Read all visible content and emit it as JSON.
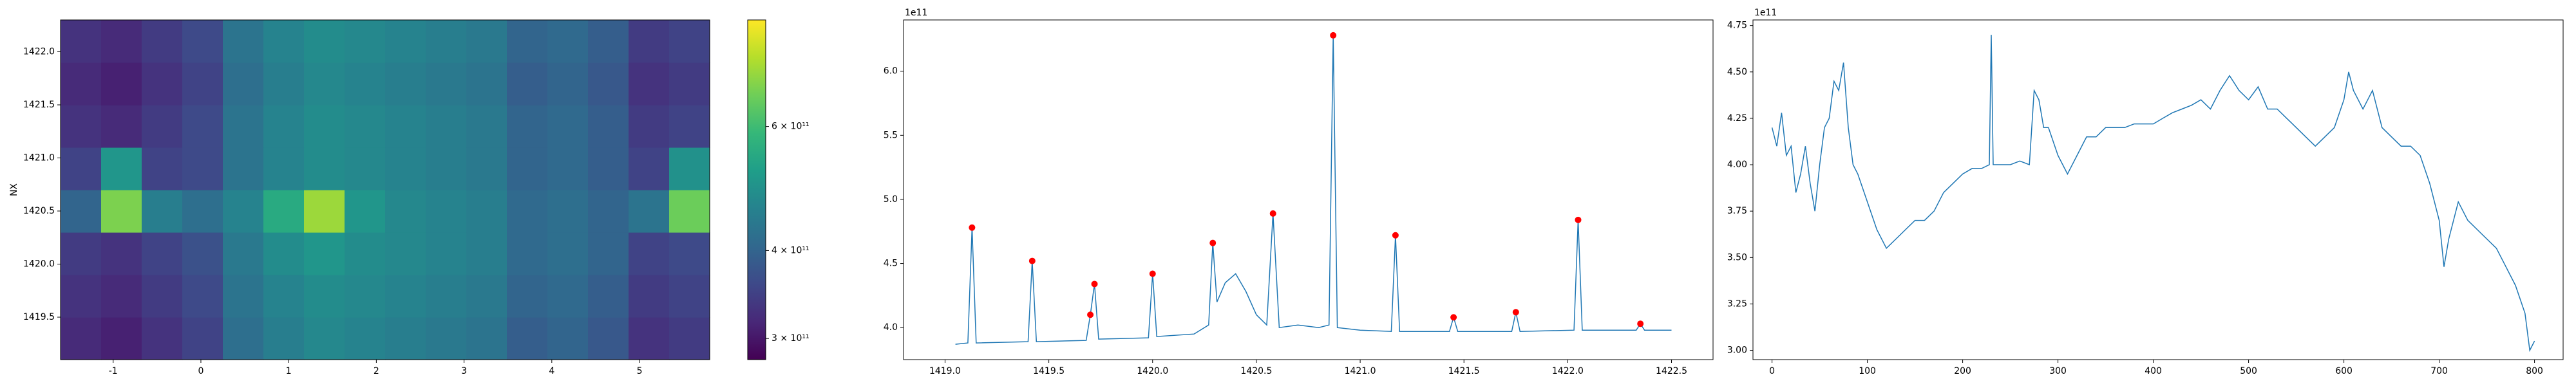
{
  "chart_data": [
    {
      "type": "heatmap",
      "ylabel": "NX",
      "xlim": [
        -1.6,
        5.8
      ],
      "xticks": [
        -1,
        0,
        1,
        2,
        3,
        4,
        5
      ],
      "ylim": [
        1419.1,
        1422.3
      ],
      "yticks": [
        1419.5,
        {
          "value": 1420.0,
          "label": "1420.0"
        },
        1420.5,
        {
          "value": 1421.0,
          "label": "1421.0"
        },
        1421.5,
        {
          "value": 1422.0,
          "label": "1422.0"
        }
      ],
      "z": [
        [
          320000000000.0,
          310000000000.0,
          330000000000.0,
          350000000000.0,
          420000000000.0,
          450000000000.0,
          470000000000.0,
          460000000000.0,
          450000000000.0,
          440000000000.0,
          430000000000.0,
          390000000000.0,
          400000000000.0,
          380000000000.0,
          330000000000.0,
          340000000000.0
        ],
        [
          330000000000.0,
          320000000000.0,
          340000000000.0,
          360000000000.0,
          430000000000.0,
          460000000000.0,
          480000000000.0,
          470000000000.0,
          460000000000.0,
          450000000000.0,
          440000000000.0,
          400000000000.0,
          410000000000.0,
          390000000000.0,
          340000000000.0,
          350000000000.0
        ],
        [
          340000000000.0,
          330000000000.0,
          350000000000.0,
          370000000000.0,
          440000000000.0,
          480000000000.0,
          500000000000.0,
          480000000000.0,
          470000000000.0,
          460000000000.0,
          450000000000.0,
          410000000000.0,
          420000000000.0,
          400000000000.0,
          350000000000.0,
          360000000000.0
        ],
        [
          400000000000.0,
          680000000000.0,
          450000000000.0,
          420000000000.0,
          460000000000.0,
          550000000000.0,
          720000000000.0,
          500000000000.0,
          470000000000.0,
          460000000000.0,
          450000000000.0,
          410000000000.0,
          420000000000.0,
          400000000000.0,
          430000000000.0,
          660000000000.0
        ],
        [
          350000000000.0,
          500000000000.0,
          350000000000.0,
          360000000000.0,
          430000000000.0,
          460000000000.0,
          480000000000.0,
          470000000000.0,
          460000000000.0,
          450000000000.0,
          440000000000.0,
          400000000000.0,
          410000000000.0,
          390000000000.0,
          350000000000.0,
          490000000000.0
        ],
        [
          330000000000.0,
          320000000000.0,
          340000000000.0,
          360000000000.0,
          430000000000.0,
          460000000000.0,
          480000000000.0,
          470000000000.0,
          460000000000.0,
          450000000000.0,
          440000000000.0,
          400000000000.0,
          410000000000.0,
          390000000000.0,
          340000000000.0,
          350000000000.0
        ],
        [
          320000000000.0,
          310000000000.0,
          330000000000.0,
          350000000000.0,
          420000000000.0,
          450000000000.0,
          470000000000.0,
          460000000000.0,
          450000000000.0,
          440000000000.0,
          430000000000.0,
          390000000000.0,
          400000000000.0,
          380000000000.0,
          330000000000.0,
          340000000000.0
        ],
        [
          330000000000.0,
          320000000000.0,
          340000000000.0,
          360000000000.0,
          430000000000.0,
          460000000000.0,
          480000000000.0,
          470000000000.0,
          460000000000.0,
          450000000000.0,
          440000000000.0,
          400000000000.0,
          410000000000.0,
          390000000000.0,
          340000000000.0,
          350000000000.0
        ]
      ],
      "colorbar": {
        "colormap": "viridis",
        "log": true,
        "lim": [
          280000000000.0,
          850000000000.0
        ],
        "ticks": [
          {
            "value": 300000000000.0,
            "label": "3 × 10¹¹"
          },
          {
            "value": 400000000000.0,
            "label": "4 × 10¹¹"
          },
          {
            "value": 600000000000.0,
            "label": "6 × 10¹¹"
          }
        ]
      }
    },
    {
      "type": "line",
      "offset_text": "1e11",
      "xlim": [
        1418.8,
        1422.7
      ],
      "xticks": [
        {
          "value": 1419.0,
          "label": "1419.0"
        },
        1419.5,
        {
          "value": 1420.0,
          "label": "1420.0"
        },
        1420.5,
        {
          "value": 1421.0,
          "label": "1421.0"
        },
        1421.5,
        {
          "value": 1422.0,
          "label": "1422.0"
        },
        1422.5
      ],
      "ylim": [
        3.75,
        6.4
      ],
      "yticks": [
        {
          "value": 4,
          "label": "4.0"
        },
        4.5,
        {
          "value": 5,
          "label": "5.0"
        },
        5.5,
        {
          "value": 6,
          "label": "6.0"
        }
      ],
      "series": [
        {
          "color": "#1f77b4",
          "x": [
            1419.05,
            1419.11,
            1419.13,
            1419.15,
            1419.4,
            1419.42,
            1419.44,
            1419.68,
            1419.7,
            1419.72,
            1419.74,
            1419.98,
            1420.0,
            1420.02,
            1420.2,
            1420.27,
            1420.29,
            1420.31,
            1420.35,
            1420.4,
            1420.45,
            1420.5,
            1420.55,
            1420.58,
            1420.61,
            1420.7,
            1420.8,
            1420.85,
            1420.87,
            1420.89,
            1421.0,
            1421.15,
            1421.17,
            1421.19,
            1421.43,
            1421.45,
            1421.47,
            1421.73,
            1421.75,
            1421.77,
            1422.03,
            1422.05,
            1422.07,
            1422.33,
            1422.35,
            1422.37,
            1422.5
          ],
          "values": [
            3.87,
            3.88,
            4.78,
            3.88,
            3.89,
            4.52,
            3.89,
            3.9,
            4.1,
            4.34,
            3.91,
            3.92,
            4.42,
            3.93,
            3.95,
            4.02,
            4.66,
            4.2,
            4.35,
            4.42,
            4.28,
            4.1,
            4.02,
            4.89,
            4.0,
            4.02,
            4.0,
            4.02,
            6.28,
            4.0,
            3.98,
            3.97,
            4.72,
            3.97,
            3.97,
            4.08,
            3.97,
            3.97,
            4.12,
            3.97,
            3.98,
            4.84,
            3.98,
            3.98,
            4.03,
            3.98,
            3.98
          ]
        }
      ],
      "markers": {
        "color": "#ff0000",
        "x": [
          1419.13,
          1419.42,
          1419.7,
          1419.72,
          1420.0,
          1420.29,
          1420.58,
          1420.87,
          1421.17,
          1421.45,
          1421.75,
          1422.05,
          1422.35
        ],
        "values": [
          4.78,
          4.52,
          4.1,
          4.34,
          4.42,
          4.66,
          4.89,
          6.28,
          4.72,
          4.08,
          4.12,
          4.84,
          4.03
        ]
      }
    },
    {
      "type": "line",
      "offset_text": "1e11",
      "xlim": [
        -20,
        830
      ],
      "xticks": [
        0,
        100,
        200,
        300,
        400,
        500,
        600,
        700,
        800
      ],
      "ylim": [
        2.95,
        4.78
      ],
      "yticks": [
        {
          "value": 3,
          "label": "3.00"
        },
        3.25,
        {
          "value": 3.5,
          "label": "3.50"
        },
        3.75,
        {
          "value": 4,
          "label": "4.00"
        },
        4.25,
        {
          "value": 4.5,
          "label": "4.50"
        },
        4.75
      ],
      "series": [
        {
          "color": "#1f77b4",
          "x": [
            0,
            5,
            10,
            15,
            20,
            25,
            30,
            35,
            40,
            45,
            50,
            55,
            60,
            65,
            70,
            75,
            80,
            85,
            90,
            100,
            110,
            120,
            130,
            140,
            150,
            160,
            170,
            180,
            190,
            200,
            210,
            220,
            228,
            230,
            232,
            240,
            250,
            260,
            270,
            275,
            280,
            285,
            290,
            300,
            310,
            320,
            330,
            340,
            350,
            360,
            370,
            380,
            390,
            400,
            410,
            420,
            430,
            440,
            450,
            460,
            470,
            480,
            490,
            500,
            510,
            520,
            530,
            540,
            550,
            560,
            570,
            580,
            590,
            600,
            605,
            610,
            620,
            630,
            640,
            650,
            660,
            670,
            680,
            690,
            700,
            705,
            710,
            720,
            730,
            740,
            750,
            760,
            770,
            780,
            790,
            795,
            800
          ],
          "values": [
            4.2,
            4.1,
            4.28,
            4.05,
            4.1,
            3.85,
            3.95,
            4.1,
            3.9,
            3.75,
            4.0,
            4.2,
            4.25,
            4.45,
            4.4,
            4.55,
            4.2,
            4.0,
            3.95,
            3.8,
            3.65,
            3.55,
            3.6,
            3.65,
            3.7,
            3.7,
            3.75,
            3.85,
            3.9,
            3.95,
            3.98,
            3.98,
            4.0,
            4.7,
            4.0,
            4.0,
            4.0,
            4.02,
            4.0,
            4.4,
            4.35,
            4.2,
            4.2,
            4.05,
            3.95,
            4.05,
            4.15,
            4.15,
            4.2,
            4.2,
            4.2,
            4.22,
            4.22,
            4.22,
            4.25,
            4.28,
            4.3,
            4.32,
            4.35,
            4.3,
            4.4,
            4.48,
            4.4,
            4.35,
            4.42,
            4.3,
            4.3,
            4.25,
            4.2,
            4.15,
            4.1,
            4.15,
            4.2,
            4.35,
            4.5,
            4.4,
            4.3,
            4.4,
            4.2,
            4.15,
            4.1,
            4.1,
            4.05,
            3.9,
            3.7,
            3.45,
            3.6,
            3.8,
            3.7,
            3.65,
            3.6,
            3.55,
            3.45,
            3.35,
            3.2,
            3.0,
            3.05
          ]
        }
      ]
    }
  ]
}
